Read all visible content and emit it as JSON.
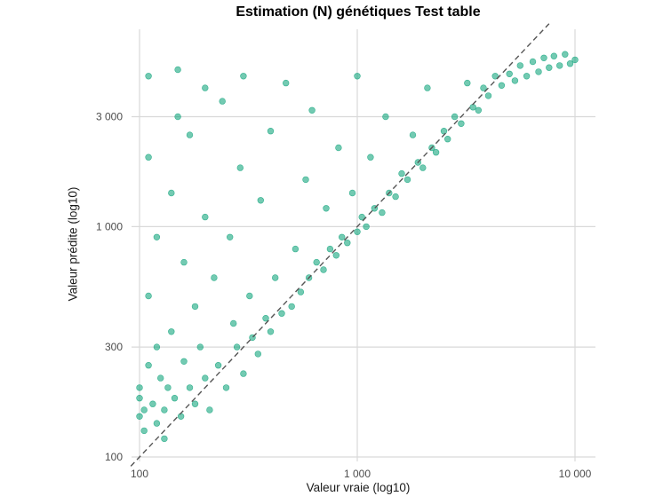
{
  "chart_data": {
    "type": "scatter",
    "title": "Estimation (N) génétiques Test table",
    "xlabel": "Valeur vraie (log10)",
    "ylabel": "Valeur prédite (log10)",
    "x_scale": "log10",
    "y_scale": "log10",
    "xlim": [
      100,
      10000
    ],
    "ylim": [
      100,
      7000
    ],
    "x_ticks": [
      {
        "value": 100,
        "label": "100"
      },
      {
        "value": 1000,
        "label": "1 000"
      },
      {
        "value": 10000,
        "label": "10 000"
      }
    ],
    "y_ticks": [
      {
        "value": 100,
        "label": "100"
      },
      {
        "value": 300,
        "label": "300"
      },
      {
        "value": 1000,
        "label": "1 000"
      },
      {
        "value": 3000,
        "label": "3 000"
      }
    ],
    "grid": true,
    "reference_line": "y = x",
    "point_color": "#009E73",
    "point_opacity": 0.55,
    "series": [
      {
        "points": [
          [
            100,
            150
          ],
          [
            100,
            200
          ],
          [
            100,
            180
          ],
          [
            105,
            130
          ],
          [
            105,
            160
          ],
          [
            110,
            250
          ],
          [
            110,
            500
          ],
          [
            110,
            2000
          ],
          [
            110,
            4500
          ],
          [
            115,
            170
          ],
          [
            120,
            140
          ],
          [
            120,
            300
          ],
          [
            120,
            900
          ],
          [
            125,
            220
          ],
          [
            130,
            120
          ],
          [
            130,
            160
          ],
          [
            135,
            200
          ],
          [
            140,
            350
          ],
          [
            140,
            1400
          ],
          [
            145,
            180
          ],
          [
            150,
            3000
          ],
          [
            150,
            4800
          ],
          [
            155,
            150
          ],
          [
            160,
            260
          ],
          [
            160,
            700
          ],
          [
            170,
            200
          ],
          [
            170,
            2500
          ],
          [
            180,
            170
          ],
          [
            180,
            450
          ],
          [
            190,
            300
          ],
          [
            200,
            220
          ],
          [
            200,
            1100
          ],
          [
            200,
            4000
          ],
          [
            210,
            160
          ],
          [
            220,
            600
          ],
          [
            230,
            250
          ],
          [
            240,
            3500
          ],
          [
            250,
            200
          ],
          [
            260,
            900
          ],
          [
            270,
            380
          ],
          [
            280,
            300
          ],
          [
            290,
            1800
          ],
          [
            300,
            230
          ],
          [
            300,
            4500
          ],
          [
            320,
            500
          ],
          [
            330,
            330
          ],
          [
            350,
            280
          ],
          [
            360,
            1300
          ],
          [
            380,
            400
          ],
          [
            400,
            350
          ],
          [
            400,
            2600
          ],
          [
            420,
            600
          ],
          [
            450,
            420
          ],
          [
            470,
            4200
          ],
          [
            500,
            450
          ],
          [
            520,
            800
          ],
          [
            550,
            520
          ],
          [
            580,
            1600
          ],
          [
            600,
            600
          ],
          [
            620,
            3200
          ],
          [
            650,
            700
          ],
          [
            700,
            650
          ],
          [
            720,
            1200
          ],
          [
            750,
            800
          ],
          [
            800,
            750
          ],
          [
            820,
            2200
          ],
          [
            850,
            900
          ],
          [
            900,
            850
          ],
          [
            950,
            1400
          ],
          [
            1000,
            950
          ],
          [
            1000,
            4500
          ],
          [
            1050,
            1100
          ],
          [
            1100,
            1000
          ],
          [
            1150,
            2000
          ],
          [
            1200,
            1200
          ],
          [
            1300,
            1150
          ],
          [
            1350,
            3000
          ],
          [
            1400,
            1400
          ],
          [
            1500,
            1350
          ],
          [
            1600,
            1700
          ],
          [
            1700,
            1600
          ],
          [
            1800,
            2500
          ],
          [
            1900,
            1900
          ],
          [
            2000,
            1800
          ],
          [
            2100,
            4000
          ],
          [
            2200,
            2200
          ],
          [
            2300,
            2100
          ],
          [
            2500,
            2600
          ],
          [
            2600,
            2400
          ],
          [
            2800,
            3000
          ],
          [
            3000,
            2800
          ],
          [
            3200,
            4200
          ],
          [
            3400,
            3300
          ],
          [
            3600,
            3200
          ],
          [
            3800,
            4000
          ],
          [
            4000,
            3700
          ],
          [
            4300,
            4500
          ],
          [
            4600,
            4100
          ],
          [
            5000,
            4600
          ],
          [
            5300,
            4300
          ],
          [
            5600,
            5000
          ],
          [
            6000,
            4500
          ],
          [
            6400,
            5200
          ],
          [
            6800,
            4700
          ],
          [
            7200,
            5400
          ],
          [
            7600,
            4900
          ],
          [
            8000,
            5500
          ],
          [
            8500,
            5000
          ],
          [
            9000,
            5600
          ],
          [
            9500,
            5100
          ],
          [
            10000,
            5300
          ]
        ]
      }
    ]
  }
}
